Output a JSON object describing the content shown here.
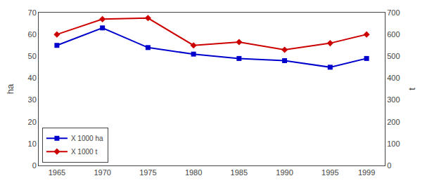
{
  "chart_data": {
    "type": "line",
    "x": [
      1965,
      1970,
      1975,
      1980,
      1985,
      1990,
      1995,
      1999
    ],
    "series": [
      {
        "name": "X 1000 ha",
        "color": "#0000cc",
        "marker": "square",
        "values": [
          55,
          63,
          54,
          51,
          49,
          48,
          45,
          49
        ]
      },
      {
        "name": "X 1000 t",
        "color": "#cc0000",
        "marker": "diamond",
        "axis": "y2",
        "values": [
          600,
          670,
          675,
          550,
          565,
          530,
          560,
          600
        ]
      }
    ],
    "ylabel": "ha",
    "y2label": "t",
    "xlim": [
      1963,
      2001
    ],
    "xticks": [
      1965,
      1970,
      1975,
      1980,
      1985,
      1990,
      1995,
      1999
    ],
    "ylim": [
      0,
      70
    ],
    "yticks": [
      0,
      10,
      20,
      30,
      40,
      50,
      60,
      70
    ],
    "y2lim": [
      0,
      700
    ],
    "y2ticks": [
      0,
      100,
      200,
      300,
      400,
      500,
      600,
      700
    ],
    "grid": false,
    "legend": "lower left"
  }
}
